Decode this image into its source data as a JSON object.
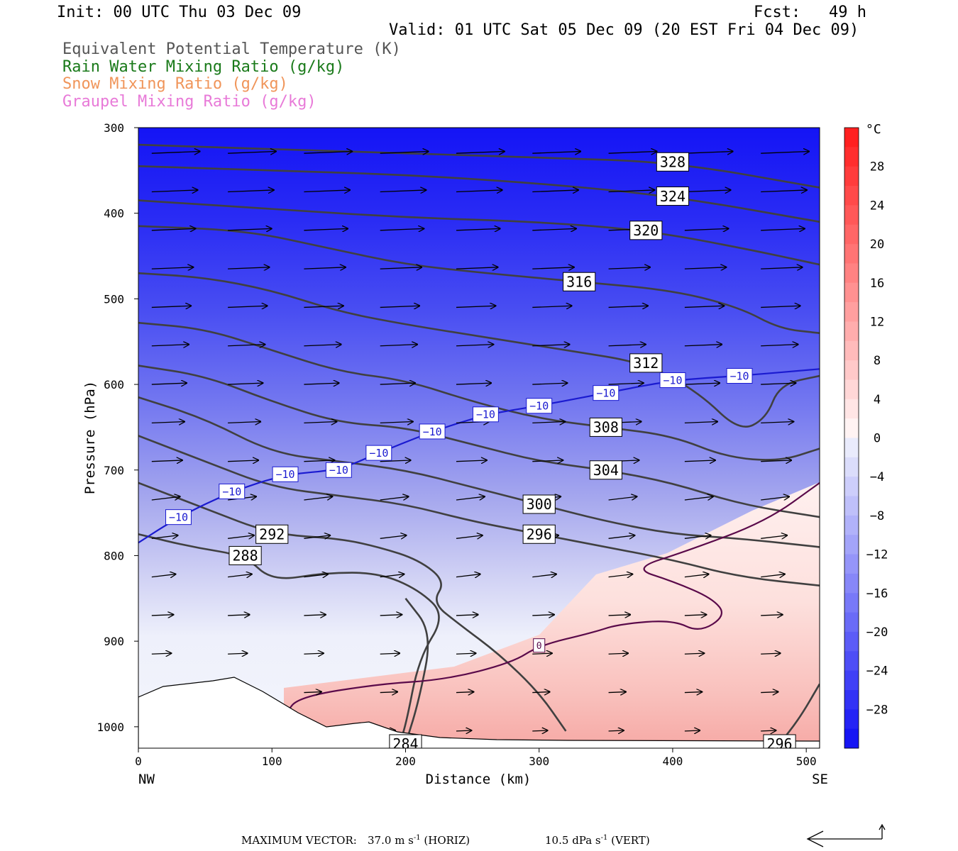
{
  "header": {
    "init": "Init: 00 UTC Thu 03 Dec 09",
    "fcst": "Fcst:   49 h",
    "valid": "Valid: 01 UTC Sat 05 Dec 09 (20 EST Fri 04 Dec 09)"
  },
  "legend": [
    {
      "label": "Equivalent Potential Temperature (K)",
      "color": "#555555"
    },
    {
      "label": "Rain Water Mixing Ratio (g/kg)",
      "color": "#1a7a1a"
    },
    {
      "label": "Snow Mixing Ratio (g/kg)",
      "color": "#f0955a"
    },
    {
      "label": "Graupel Mixing Ratio (g/kg)",
      "color": "#e87ad8"
    }
  ],
  "footer": {
    "label": "MAXIMUM VECTOR:",
    "horiz_value": "37.0",
    "horiz_unit": "m s",
    "horiz_tail": " (HORIZ)",
    "vert_value": "10.5",
    "vert_unit": "dPa s",
    "vert_tail": " (VERT)",
    "exp": "-1"
  },
  "chart_data": {
    "type": "contour",
    "xlabel": "Distance (km)",
    "ylabel": "Pressure (hPa)",
    "xlim": [
      0,
      510
    ],
    "ylim": [
      1025,
      300
    ],
    "x_ticks": [
      0,
      100,
      200,
      300,
      400,
      500
    ],
    "y_ticks": [
      300,
      400,
      500,
      600,
      700,
      800,
      900,
      1000
    ],
    "x_end_labels": {
      "left": "NW",
      "right": "SE"
    },
    "colorbar": {
      "unit": "°C",
      "ticks": [
        28,
        24,
        20,
        16,
        12,
        8,
        4,
        0,
        -4,
        -8,
        -12,
        -16,
        -20,
        -24,
        -28
      ],
      "range": [
        -32,
        32
      ]
    },
    "theta_e_contours": [
      {
        "value": 328,
        "points": [
          [
            0,
            320
          ],
          [
            100,
            325
          ],
          [
            200,
            330
          ],
          [
            300,
            335
          ],
          [
            400,
            340
          ],
          [
            510,
            370
          ]
        ]
      },
      {
        "value": 324,
        "points": [
          [
            0,
            345
          ],
          [
            100,
            350
          ],
          [
            200,
            355
          ],
          [
            300,
            365
          ],
          [
            400,
            380
          ],
          [
            510,
            410
          ]
        ]
      },
      {
        "value": 320,
        "points": [
          [
            0,
            385
          ],
          [
            100,
            395
          ],
          [
            200,
            405
          ],
          [
            300,
            410
          ],
          [
            380,
            420
          ],
          [
            450,
            440
          ],
          [
            510,
            460
          ]
        ]
      },
      {
        "value": 316,
        "points": [
          [
            0,
            415
          ],
          [
            80,
            420
          ],
          [
            140,
            440
          ],
          [
            200,
            460
          ],
          [
            260,
            470
          ],
          [
            330,
            480
          ],
          [
            400,
            490
          ],
          [
            450,
            510
          ],
          [
            480,
            535
          ],
          [
            510,
            540
          ]
        ]
      },
      {
        "value": 312,
        "points": [
          [
            0,
            470
          ],
          [
            50,
            475
          ],
          [
            100,
            490
          ],
          [
            150,
            515
          ],
          [
            200,
            530
          ],
          [
            260,
            545
          ],
          [
            320,
            560
          ],
          [
            380,
            575
          ],
          [
            420,
            610
          ],
          [
            450,
            655
          ],
          [
            470,
            640
          ],
          [
            480,
            600
          ],
          [
            510,
            590
          ]
        ]
      },
      {
        "value": 308,
        "points": [
          [
            0,
            528
          ],
          [
            50,
            535
          ],
          [
            100,
            560
          ],
          [
            150,
            585
          ],
          [
            200,
            595
          ],
          [
            250,
            620
          ],
          [
            300,
            640
          ],
          [
            350,
            650
          ],
          [
            400,
            660
          ],
          [
            440,
            685
          ],
          [
            480,
            690
          ],
          [
            510,
            675
          ]
        ]
      },
      {
        "value": 304,
        "points": [
          [
            0,
            578
          ],
          [
            50,
            590
          ],
          [
            100,
            620
          ],
          [
            150,
            645
          ],
          [
            200,
            650
          ],
          [
            250,
            670
          ],
          [
            300,
            690
          ],
          [
            350,
            700
          ],
          [
            400,
            715
          ],
          [
            450,
            740
          ],
          [
            510,
            755
          ]
        ]
      },
      {
        "value": 300,
        "points": [
          [
            0,
            615
          ],
          [
            50,
            640
          ],
          [
            100,
            680
          ],
          [
            150,
            690
          ],
          [
            200,
            700
          ],
          [
            250,
            720
          ],
          [
            300,
            740
          ],
          [
            350,
            760
          ],
          [
            400,
            775
          ],
          [
            450,
            780
          ],
          [
            510,
            790
          ]
        ]
      },
      {
        "value": 296,
        "points": [
          [
            0,
            660
          ],
          [
            50,
            690
          ],
          [
            100,
            720
          ],
          [
            150,
            730
          ],
          [
            200,
            740
          ],
          [
            250,
            760
          ],
          [
            300,
            775
          ],
          [
            350,
            790
          ],
          [
            400,
            805
          ],
          [
            450,
            825
          ],
          [
            510,
            835
          ]
        ]
      },
      {
        "value": 292,
        "points": [
          [
            0,
            715
          ],
          [
            50,
            745
          ],
          [
            100,
            775
          ],
          [
            150,
            780
          ],
          [
            180,
            790
          ],
          [
            210,
            805
          ],
          [
            230,
            830
          ],
          [
            220,
            855
          ],
          [
            240,
            880
          ],
          [
            270,
            915
          ],
          [
            300,
            960
          ],
          [
            320,
            1005
          ]
        ]
      },
      {
        "value": 288,
        "points": [
          [
            0,
            775
          ],
          [
            40,
            790
          ],
          [
            80,
            800
          ],
          [
            100,
            830
          ],
          [
            140,
            820
          ],
          [
            180,
            820
          ],
          [
            210,
            840
          ],
          [
            230,
            870
          ],
          [
            210,
            920
          ],
          [
            200,
            1000
          ],
          [
            195,
            1020
          ]
        ]
      },
      {
        "value": 284,
        "points": [
          [
            200,
            1020
          ],
          [
            210,
            970
          ],
          [
            220,
            890
          ],
          [
            200,
            850
          ]
        ]
      },
      {
        "value": 296,
        "points": [
          [
            510,
            950
          ],
          [
            495,
            990
          ],
          [
            480,
            1020
          ]
        ]
      }
    ],
    "minus10_isotherm": [
      [
        0,
        785
      ],
      [
        30,
        755
      ],
      [
        70,
        725
      ],
      [
        110,
        705
      ],
      [
        150,
        700
      ],
      [
        180,
        680
      ],
      [
        220,
        655
      ],
      [
        260,
        635
      ],
      [
        300,
        625
      ],
      [
        350,
        610
      ],
      [
        400,
        595
      ],
      [
        450,
        590
      ],
      [
        510,
        582
      ]
    ],
    "zero_isotherm": [
      [
        110,
        985
      ],
      [
        120,
        965
      ],
      [
        180,
        950
      ],
      [
        230,
        945
      ],
      [
        280,
        925
      ],
      [
        300,
        905
      ],
      [
        340,
        890
      ],
      [
        360,
        880
      ],
      [
        400,
        875
      ],
      [
        420,
        890
      ],
      [
        440,
        870
      ],
      [
        430,
        850
      ],
      [
        400,
        830
      ],
      [
        370,
        815
      ],
      [
        410,
        795
      ],
      [
        470,
        760
      ],
      [
        510,
        715
      ]
    ]
  }
}
